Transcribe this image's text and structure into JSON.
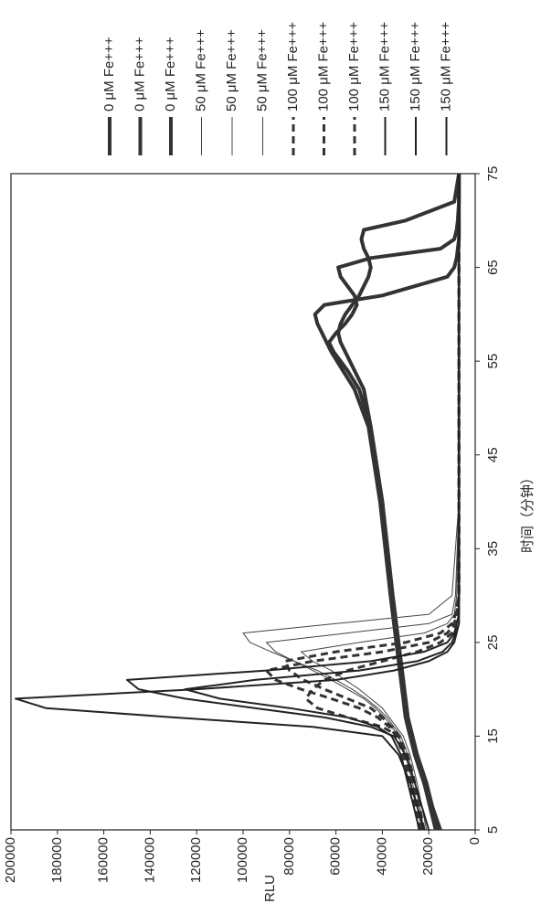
{
  "chart_data": {
    "type": "line",
    "x_label": "时间（分钟）",
    "y_label": "RLU",
    "x": [
      5,
      10,
      13,
      15,
      16,
      17,
      18,
      19,
      20,
      21,
      22,
      23,
      24,
      25,
      26,
      27,
      28,
      30,
      40,
      48,
      52,
      54,
      56,
      57,
      58,
      59,
      60,
      61,
      62,
      64,
      65,
      66,
      67,
      68,
      69,
      70,
      72,
      75
    ],
    "xlim": [
      5,
      75
    ],
    "xticks": [
      5,
      15,
      25,
      35,
      45,
      55,
      65,
      75
    ],
    "ylim": [
      0,
      200000
    ],
    "yticks": [
      0,
      20000,
      40000,
      60000,
      80000,
      100000,
      120000,
      140000,
      160000,
      180000,
      200000
    ],
    "rotated": true,
    "series": [
      {
        "name": "0 μM Fe+++",
        "color": "#333333",
        "line_width": 4,
        "dashed": false,
        "values": [
          15000,
          22000,
          26000,
          28000,
          29000,
          30000,
          30500,
          31000,
          31500,
          32000,
          32500,
          33000,
          33500,
          34000,
          34500,
          35000,
          35500,
          36500,
          41000,
          46000,
          52000,
          57000,
          62000,
          64000,
          66000,
          68000,
          69000,
          65000,
          40000,
          12000,
          9000,
          8000,
          7500,
          7000,
          7000,
          7000,
          7000,
          7000
        ]
      },
      {
        "name": "0 μM Fe+++",
        "color": "#333333",
        "line_width": 4,
        "dashed": false,
        "values": [
          16000,
          21000,
          25000,
          27000,
          28000,
          29000,
          29500,
          30000,
          30500,
          31000,
          31500,
          32000,
          32500,
          33000,
          33500,
          34000,
          34500,
          35500,
          40000,
          45000,
          50000,
          55000,
          61000,
          63000,
          60000,
          56000,
          53000,
          51000,
          52000,
          58000,
          59000,
          45000,
          15000,
          9000,
          8000,
          7500,
          7000,
          7000
        ]
      },
      {
        "name": "0 μM Fe+++",
        "color": "#333333",
        "line_width": 4,
        "dashed": false,
        "values": [
          17000,
          22000,
          26000,
          28000,
          29000,
          29500,
          30000,
          30500,
          31000,
          31500,
          32000,
          32500,
          33000,
          33500,
          34000,
          34500,
          35000,
          36000,
          40000,
          45000,
          48000,
          52000,
          56000,
          58000,
          59000,
          58000,
          56000,
          53000,
          50000,
          46000,
          45000,
          46000,
          48000,
          49000,
          48000,
          30000,
          9000,
          7000
        ]
      },
      {
        "name": "50 μM Fe+++",
        "color": "#444444",
        "line_width": 1,
        "dashed": false,
        "values": [
          23000,
          27000,
          30000,
          33000,
          36000,
          39000,
          43000,
          48000,
          55000,
          62000,
          70000,
          78000,
          88000,
          97000,
          100000,
          60000,
          20000,
          10000,
          7000,
          7000,
          7000,
          7000,
          7000,
          7000,
          7000,
          7000,
          7000,
          7000,
          7000,
          7000,
          7000,
          7000,
          7000,
          7000,
          7000,
          7000,
          7000,
          7000
        ]
      },
      {
        "name": "50 μM Fe+++",
        "color": "#444444",
        "line_width": 1,
        "dashed": false,
        "values": [
          22000,
          26000,
          29000,
          32000,
          35000,
          38000,
          42000,
          47000,
          53000,
          60000,
          68000,
          78000,
          86000,
          90000,
          55000,
          20000,
          10000,
          8500,
          7000,
          7000,
          7000,
          7000,
          7000,
          7000,
          7000,
          7000,
          7000,
          7000,
          7000,
          7000,
          7000,
          7000,
          7000,
          7000,
          7000,
          7000,
          7000,
          7000
        ]
      },
      {
        "name": "50 μM Fe+++",
        "color": "#444444",
        "line_width": 1,
        "dashed": false,
        "values": [
          21000,
          25000,
          28000,
          31000,
          34000,
          37000,
          40000,
          45000,
          50000,
          56000,
          62000,
          70000,
          75000,
          50000,
          22000,
          12000,
          9000,
          8000,
          7000,
          7000,
          7000,
          7000,
          7000,
          7000,
          7000,
          7000,
          7000,
          7000,
          7000,
          7000,
          7000,
          7000,
          7000,
          7000,
          7000,
          7000,
          7000,
          7000
        ]
      },
      {
        "name": "100 μM Fe+++",
        "color": "#333333",
        "line_width": 3,
        "dashed": true,
        "values": [
          24000,
          28000,
          31000,
          34000,
          37000,
          42000,
          50000,
          62000,
          75000,
          86000,
          90000,
          70000,
          40000,
          20000,
          12000,
          9000,
          8000,
          7000,
          7000,
          7000,
          7000,
          7000,
          7000,
          7000,
          7000,
          7000,
          7000,
          7000,
          7000,
          7000,
          7000,
          7000,
          7000,
          7000,
          7000,
          7000,
          7000,
          7000
        ]
      },
      {
        "name": "100 μM Fe+++",
        "color": "#333333",
        "line_width": 3,
        "dashed": true,
        "values": [
          23000,
          27000,
          30000,
          33000,
          36000,
          40000,
          45000,
          55000,
          65000,
          74000,
          80000,
          82000,
          60000,
          30000,
          15000,
          10000,
          8500,
          7000,
          7000,
          7000,
          7000,
          7000,
          7000,
          7000,
          7000,
          7000,
          7000,
          7000,
          7000,
          7000,
          7000,
          7000,
          7000,
          7000,
          7000,
          7000,
          7000,
          7000
        ]
      },
      {
        "name": "100 μM Fe+++",
        "color": "#333333",
        "line_width": 3,
        "dashed": true,
        "values": [
          22000,
          26000,
          29000,
          33000,
          40000,
          55000,
          68000,
          73000,
          70000,
          65000,
          55000,
          40000,
          25000,
          15000,
          10000,
          9000,
          8000,
          7000,
          7000,
          7000,
          7000,
          7000,
          7000,
          7000,
          7000,
          7000,
          7000,
          7000,
          7000,
          7000,
          7000,
          7000,
          7000,
          7000,
          7000,
          7000,
          7000,
          7000
        ]
      },
      {
        "name": "150 μM Fe+++",
        "color": "#222222",
        "line_width": 2,
        "dashed": false,
        "values": [
          22000,
          28000,
          33000,
          40000,
          70000,
          130000,
          185000,
          198000,
          120000,
          60000,
          35000,
          20000,
          12000,
          9000,
          8000,
          7000,
          7000,
          7000,
          7000,
          7000,
          7000,
          7000,
          7000,
          7000,
          7000,
          7000,
          7000,
          7000,
          7000,
          7000,
          7000,
          7000,
          7000,
          7000,
          7000,
          7000,
          7000,
          7000
        ]
      },
      {
        "name": "150 μM Fe+++",
        "color": "#222222",
        "line_width": 2,
        "dashed": false,
        "values": [
          20000,
          26000,
          30000,
          35000,
          45000,
          65000,
          95000,
          125000,
          145000,
          150000,
          90000,
          45000,
          22000,
          12000,
          9000,
          8000,
          7000,
          7000,
          7000,
          7000,
          7000,
          7000,
          7000,
          7000,
          7000,
          7000,
          7000,
          7000,
          7000,
          7000,
          7000,
          7000,
          7000,
          7000,
          7000,
          7000,
          7000,
          7000
        ]
      },
      {
        "name": "150 μM Fe+++",
        "color": "#222222",
        "line_width": 2,
        "dashed": false,
        "values": [
          24000,
          29000,
          32000,
          36000,
          42000,
          55000,
          80000,
          110000,
          125000,
          95000,
          50000,
          25000,
          14000,
          10000,
          8500,
          7000,
          7000,
          7000,
          7000,
          7000,
          7000,
          7000,
          7000,
          7000,
          7000,
          7000,
          7000,
          7000,
          7000,
          7000,
          7000,
          7000,
          7000,
          7000,
          7000,
          7000,
          7000,
          7000
        ]
      }
    ]
  }
}
